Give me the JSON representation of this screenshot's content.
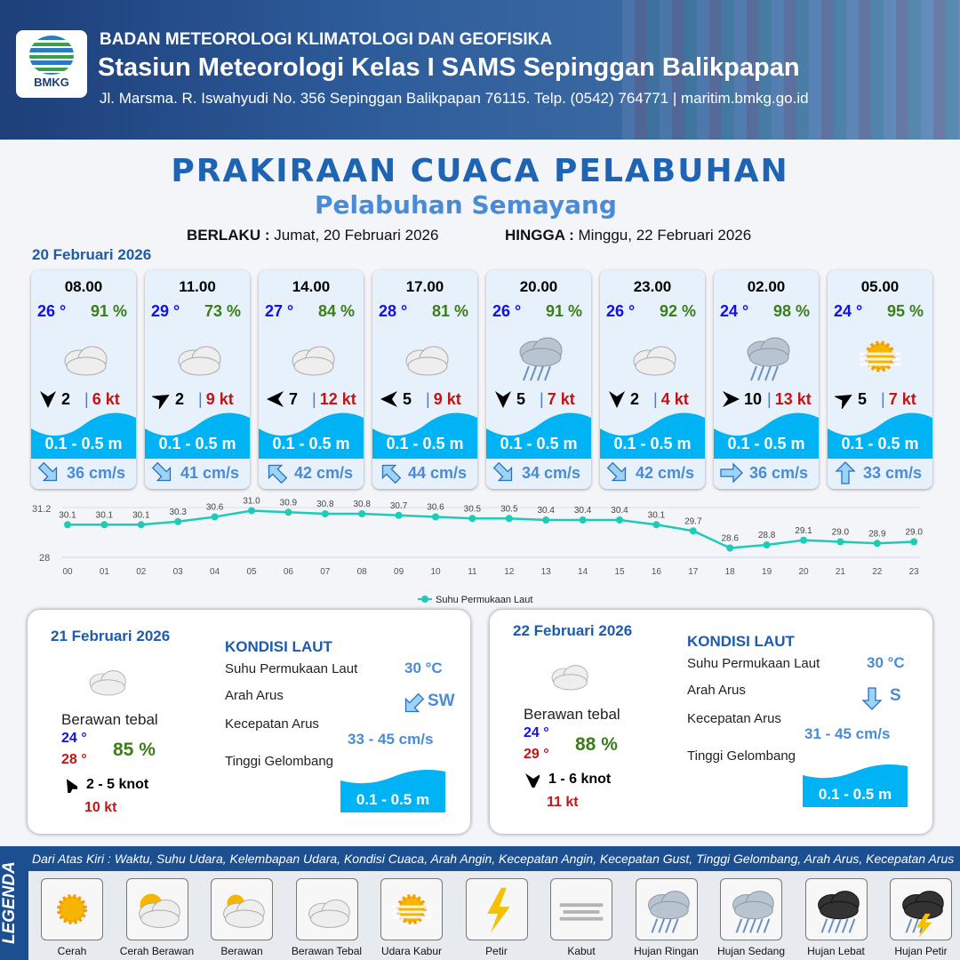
{
  "header": {
    "org": "BADAN METEOROLOGI KLIMATOLOGI DAN GEOFISIKA",
    "station": "Stasiun Meteorologi Kelas I SAMS Sepinggan Balikpapan",
    "address": "Jl. Marsma. R. Iswahyudi No. 356 Sepinggan Balikpapan 76115. Telp. (0542) 764771 | maritim.bmkg.go.id",
    "logo": "BMKG"
  },
  "title": "PRAKIRAAN CUACA PELABUHAN",
  "subtitle": "Pelabuhan Semayang",
  "validity": {
    "from_label": "BERLAKU :",
    "from": "Jumat, 20 Februari 2026",
    "to_label": "HINGGA :",
    "to": "Minggu, 22 Februari 2026"
  },
  "day0": {
    "date": "20 Februari 2026",
    "slots": [
      {
        "time": "08.00",
        "temp": "26 °",
        "hum": "91 %",
        "icon": "berawan-tebal",
        "wind_dir": 180,
        "wind": "2",
        "gust": "6 kt",
        "wave": "0.1 - 0.5 m",
        "cur_dir": 135,
        "cur": "36 cm/s"
      },
      {
        "time": "11.00",
        "temp": "29 °",
        "hum": "73 %",
        "icon": "berawan-tebal",
        "wind_dir": 60,
        "wind": "2",
        "gust": "9 kt",
        "wave": "0.1 - 0.5 m",
        "cur_dir": 135,
        "cur": "41 cm/s"
      },
      {
        "time": "14.00",
        "temp": "27 °",
        "hum": "84 %",
        "icon": "berawan-tebal",
        "wind_dir": 270,
        "wind": "7",
        "gust": "12 kt",
        "wave": "0.1 - 0.5 m",
        "cur_dir": 315,
        "cur": "42 cm/s"
      },
      {
        "time": "17.00",
        "temp": "28 °",
        "hum": "81 %",
        "icon": "berawan-tebal",
        "wind_dir": 270,
        "wind": "5",
        "gust": "9 kt",
        "wave": "0.1 - 0.5 m",
        "cur_dir": 315,
        "cur": "44 cm/s"
      },
      {
        "time": "20.00",
        "temp": "26 °",
        "hum": "91 %",
        "icon": "hujan-ringan",
        "wind_dir": 180,
        "wind": "5",
        "gust": "7 kt",
        "wave": "0.1 - 0.5 m",
        "cur_dir": 135,
        "cur": "34 cm/s"
      },
      {
        "time": "23.00",
        "temp": "26 °",
        "hum": "92 %",
        "icon": "berawan-tebal",
        "wind_dir": 180,
        "wind": "2",
        "gust": "4 kt",
        "wave": "0.1 - 0.5 m",
        "cur_dir": 135,
        "cur": "42 cm/s"
      },
      {
        "time": "02.00",
        "temp": "24 °",
        "hum": "98 %",
        "icon": "hujan-ringan",
        "wind_dir": 90,
        "wind": "10",
        "gust": "13 kt",
        "wave": "0.1 - 0.5 m",
        "cur_dir": 90,
        "cur": "36 cm/s"
      },
      {
        "time": "05.00",
        "temp": "24 °",
        "hum": "95 %",
        "icon": "udara-kabur",
        "wind_dir": 60,
        "wind": "5",
        "gust": "7 kt",
        "wave": "0.1 - 0.5 m",
        "cur_dir": 0,
        "cur": "33 cm/s"
      }
    ]
  },
  "chart_data": {
    "type": "line",
    "x": [
      "00",
      "01",
      "02",
      "03",
      "04",
      "05",
      "06",
      "07",
      "08",
      "09",
      "10",
      "11",
      "12",
      "13",
      "14",
      "15",
      "16",
      "17",
      "18",
      "19",
      "20",
      "21",
      "22",
      "23"
    ],
    "series": [
      {
        "name": "Suhu Permukaan Laut",
        "values": [
          30.1,
          30.1,
          30.1,
          30.3,
          30.6,
          31.0,
          30.9,
          30.8,
          30.8,
          30.7,
          30.6,
          30.5,
          30.5,
          30.4,
          30.4,
          30.4,
          30.1,
          29.7,
          28.6,
          28.8,
          29.1,
          29.0,
          28.9,
          29.0
        ]
      }
    ],
    "yticks": [
      "31.2",
      "28"
    ],
    "ylim": [
      28,
      31.2
    ],
    "color": "#1ecbb8",
    "legend": "bottom",
    "grid": true
  },
  "days": [
    {
      "date": "21 Februari 2026",
      "cond": "Berawan tebal",
      "tmin": "24 °",
      "tmax": "28 °",
      "hum": "85 %",
      "wind_dir": 330,
      "wind": "2  - 5 knot",
      "gust": "10 kt",
      "sea_title": "KONDISI LAUT",
      "sst_label": "Suhu Permukaan Laut",
      "sst": "30 °C",
      "dir_label": "Arah Arus",
      "dir": "SW",
      "cur_dir": 225,
      "spd_label": "Kecepatan Arus",
      "spd": "33  - 45 cm/s",
      "wave_label": "Tinggi Gelombang",
      "wave": "0.1 - 0.5 m"
    },
    {
      "date": "22 Februari 2026",
      "cond": "Berawan tebal",
      "tmin": "24 °",
      "tmax": "29 °",
      "hum": "88 %",
      "wind_dir": 180,
      "wind": "1  - 6 knot",
      "gust": "11 kt",
      "sea_title": "KONDISI LAUT",
      "sst_label": "Suhu Permukaan Laut",
      "sst": "30 °C",
      "dir_label": "Arah Arus",
      "dir": "S",
      "cur_dir": 180,
      "spd_label": "Kecepatan Arus",
      "spd": "31  - 45 cm/s",
      "wave_label": "Tinggi Gelombang",
      "wave": "0.1 - 0.5 m"
    }
  ],
  "legend": {
    "title": "LEGENDA",
    "desc": "Dari Atas Kiri : Waktu, Suhu Udara, Kelembapan Udara, Kondisi Cuaca, Arah Angin, Kecepatan Angin, Kecepatan Gust, Tinggi Gelombang, Arah Arus, Kecepatan Arus",
    "items": [
      {
        "label": "Cerah",
        "icon": "cerah"
      },
      {
        "label": "Cerah Berawan",
        "icon": "cerah-berawan"
      },
      {
        "label": "Berawan",
        "icon": "berawan"
      },
      {
        "label": "Berawan Tebal",
        "icon": "berawan-tebal"
      },
      {
        "label": "Udara Kabur",
        "icon": "udara-kabur"
      },
      {
        "label": "Petir",
        "icon": "petir"
      },
      {
        "label": "Kabut",
        "icon": "kabut"
      },
      {
        "label": "Hujan Ringan",
        "icon": "hujan-ringan"
      },
      {
        "label": "Hujan Sedang",
        "icon": "hujan-sedang"
      },
      {
        "label": "Hujan Lebat",
        "icon": "hujan-lebat"
      },
      {
        "label": "Hujan Petir",
        "icon": "hujan-petir"
      }
    ]
  }
}
